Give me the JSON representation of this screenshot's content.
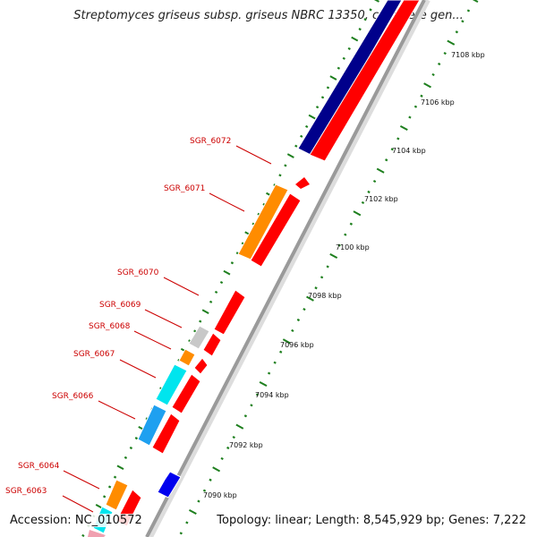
{
  "title": "Streptomyces griseus subsp. griseus NBRC 13350, complete gen...",
  "accession_line": "Accession: NC_010572",
  "summary_line": "Topology: linear; Length: 8,545,929 bp; Genes: 7,222",
  "scale_labels": [
    "7108 kbp",
    "7106 kbp",
    "7104 kbp",
    "7102 kbp",
    "7100 kbp",
    "7098 kbp",
    "7096 kbp",
    "7094 kbp",
    "7092 kbp",
    "7090 kbp"
  ],
  "colors": {
    "cds_forward": "#ff0000",
    "cds_reverse": "#0000ee",
    "dark_blue": "#00008b",
    "orange": "#ff8c00",
    "cyan": "#00e5ee",
    "sky_blue": "#1ea0f0",
    "gray": "#c8c8c8",
    "backbone": "#9a9a9a",
    "tick_green": "#1e7f1e",
    "label_red": "#cc0000"
  },
  "gene_labels": [
    "SGR_6072",
    "SGR_6071",
    "SGR_6070",
    "SGR_6069",
    "SGR_6068",
    "SGR_6067",
    "SGR_6066",
    "SGR_6064",
    "SGR_6063"
  ]
}
